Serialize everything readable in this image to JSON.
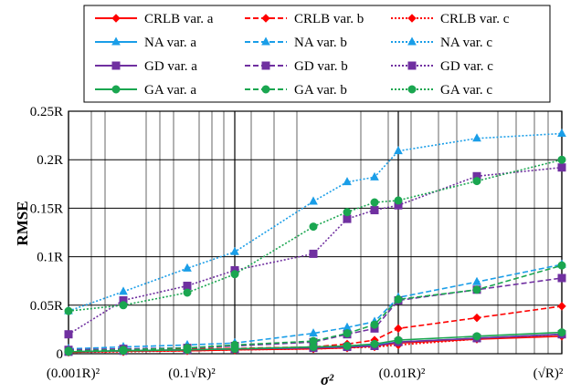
{
  "chart_data": {
    "type": "line",
    "title": "",
    "xlabel": "σ²",
    "ylabel": "RMSE",
    "x_scale": "log",
    "grid": true,
    "legend_position": "top",
    "x_tick_labels": [
      "(0.001R)²",
      "(0.1√R)²",
      "(0.01R)²",
      "(√R)²"
    ],
    "y_tick_labels": [
      "0",
      "0.05R",
      "0.1R",
      "0.15R",
      "0.2R",
      "0.25R"
    ],
    "ylim": [
      0,
      0.25
    ],
    "x": [
      1,
      2,
      3,
      4,
      5,
      6,
      7,
      8,
      9,
      10
    ],
    "series": [
      {
        "name": "CRLB var. a",
        "color": "#ff0000",
        "style": "solid",
        "marker": "diamond",
        "values": [
          0.0015,
          0.0025,
          0.003,
          0.004,
          0.005,
          0.006,
          0.008,
          0.011,
          0.015,
          0.018
        ]
      },
      {
        "name": "CRLB var. b",
        "color": "#ff0000",
        "style": "dashed",
        "marker": "diamond",
        "values": [
          0.0025,
          0.004,
          0.005,
          0.0055,
          0.007,
          0.01,
          0.014,
          0.026,
          0.037,
          0.049
        ]
      },
      {
        "name": "CRLB var. c",
        "color": "#ff0000",
        "style": "dotted",
        "marker": "diamond",
        "values": [
          0.0015,
          0.002,
          0.003,
          0.004,
          0.005,
          0.006,
          0.007,
          0.009,
          0.015,
          0.02
        ]
      },
      {
        "name": "NA var. a",
        "color": "#1a9ee8",
        "style": "solid",
        "marker": "triangle",
        "values": [
          0.002,
          0.003,
          0.004,
          0.005,
          0.006,
          0.007,
          0.009,
          0.012,
          0.016,
          0.02
        ]
      },
      {
        "name": "NA var. b",
        "color": "#1a9ee8",
        "style": "dashed",
        "marker": "triangle",
        "values": [
          0.005,
          0.007,
          0.009,
          0.011,
          0.021,
          0.027,
          0.033,
          0.058,
          0.074,
          0.092
        ]
      },
      {
        "name": "NA var. c",
        "color": "#1a9ee8",
        "style": "dotted",
        "marker": "triangle",
        "values": [
          0.044,
          0.064,
          0.088,
          0.105,
          0.157,
          0.177,
          0.182,
          0.209,
          0.222,
          0.227
        ]
      },
      {
        "name": "GD var. a",
        "color": "#7030a0",
        "style": "solid",
        "marker": "square",
        "values": [
          0.002,
          0.003,
          0.004,
          0.005,
          0.006,
          0.007,
          0.008,
          0.012,
          0.016,
          0.02
        ]
      },
      {
        "name": "GD var. b",
        "color": "#7030a0",
        "style": "dashed",
        "marker": "square",
        "values": [
          0.004,
          0.005,
          0.006,
          0.008,
          0.012,
          0.02,
          0.026,
          0.055,
          0.066,
          0.078
        ]
      },
      {
        "name": "GD var. c",
        "color": "#7030a0",
        "style": "dotted",
        "marker": "square",
        "values": [
          0.02,
          0.055,
          0.07,
          0.086,
          0.103,
          0.139,
          0.148,
          0.153,
          0.183,
          0.192
        ]
      },
      {
        "name": "GA var. a",
        "color": "#1aa650",
        "style": "solid",
        "marker": "circle",
        "values": [
          0.002,
          0.003,
          0.004,
          0.005,
          0.007,
          0.008,
          0.01,
          0.014,
          0.018,
          0.022
        ]
      },
      {
        "name": "GA var. b",
        "color": "#1aa650",
        "style": "dashed",
        "marker": "circle",
        "values": [
          0.003,
          0.004,
          0.006,
          0.009,
          0.013,
          0.021,
          0.03,
          0.056,
          0.066,
          0.091
        ]
      },
      {
        "name": "GA var. c",
        "color": "#1aa650",
        "style": "dotted",
        "marker": "circle",
        "values": [
          0.044,
          0.05,
          0.063,
          0.082,
          0.131,
          0.146,
          0.156,
          0.158,
          0.178,
          0.2
        ]
      }
    ]
  }
}
